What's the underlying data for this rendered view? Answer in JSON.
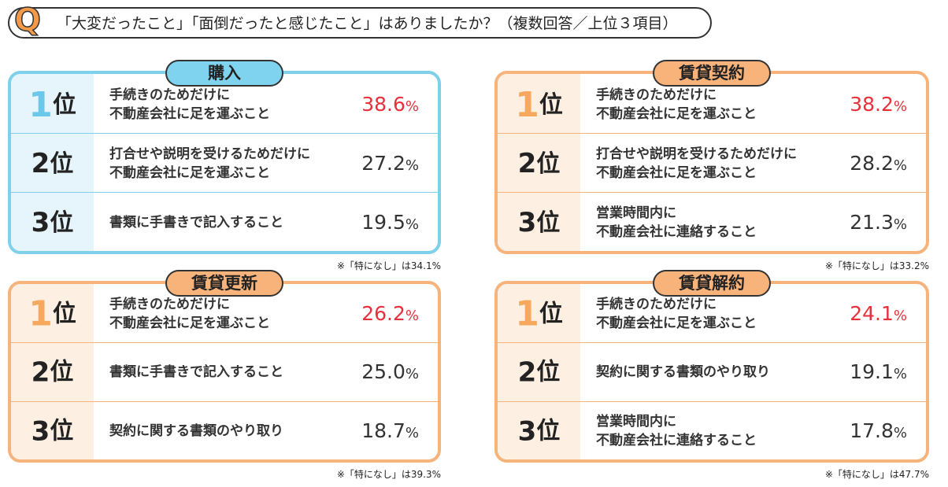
{
  "header": {
    "q": "Q",
    "question": "「大変だったこと」「面倒だったと感じたこと」はありましたか？（複数回答／上位３項目）"
  },
  "rank_unit": "位",
  "unit": "%",
  "panels": [
    {
      "title": "購入",
      "note": "※「特になし」は34.1%",
      "items": [
        {
          "rank": "1",
          "lines": [
            "手続きのためだけに",
            "不動産会社に足を運ぶこと"
          ],
          "value": "38.6"
        },
        {
          "rank": "2",
          "lines": [
            "打合せや説明を受けるためだけに",
            "不動産会社に足を運ぶこと"
          ],
          "value": "27.2"
        },
        {
          "rank": "3",
          "lines": [
            "書類に手書きで記入すること"
          ],
          "value": "19.5"
        }
      ]
    },
    {
      "title": "賃貸契約",
      "note": "※「特になし」は33.2%",
      "items": [
        {
          "rank": "1",
          "lines": [
            "手続きのためだけに",
            "不動産会社に足を運ぶこと"
          ],
          "value": "38.2"
        },
        {
          "rank": "2",
          "lines": [
            "打合せや説明を受けるためだけに",
            "不動産会社に足を運ぶこと"
          ],
          "value": "28.2"
        },
        {
          "rank": "3",
          "lines": [
            "営業時間内に",
            "不動産会社に連絡すること"
          ],
          "value": "21.3"
        }
      ]
    },
    {
      "title": "賃貸更新",
      "note": "※「特になし」は39.3%",
      "items": [
        {
          "rank": "1",
          "lines": [
            "手続きのためだけに",
            "不動産会社に足を運ぶこと"
          ],
          "value": "26.2"
        },
        {
          "rank": "2",
          "lines": [
            "書類に手書きで記入すること"
          ],
          "value": "25.0"
        },
        {
          "rank": "3",
          "lines": [
            "契約に関する書類のやり取り"
          ],
          "value": "18.7"
        }
      ]
    },
    {
      "title": "賃貸解約",
      "note": "※「特になし」は47.7%",
      "items": [
        {
          "rank": "1",
          "lines": [
            "手続きのためだけに",
            "不動産会社に足を運ぶこと"
          ],
          "value": "24.1"
        },
        {
          "rank": "2",
          "lines": [
            "契約に関する書類のやり取り"
          ],
          "value": "19.1"
        },
        {
          "rank": "3",
          "lines": [
            "営業時間内に",
            "不動産会社に連絡すること"
          ],
          "value": "17.8"
        }
      ]
    }
  ]
}
